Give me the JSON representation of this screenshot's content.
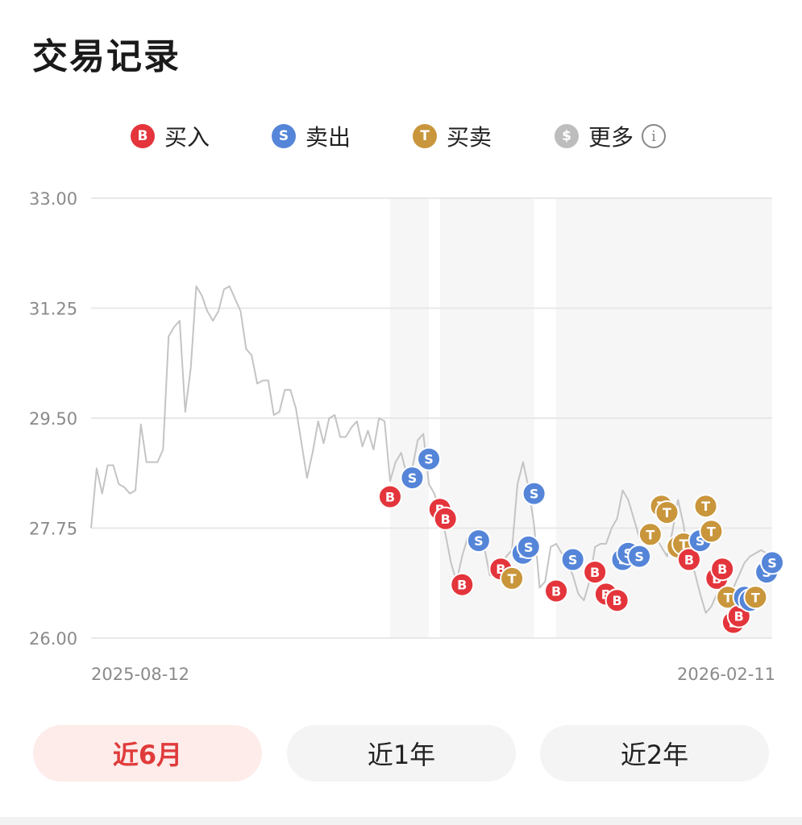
{
  "header": {
    "title": "交易记录"
  },
  "legend": [
    {
      "id": "buy",
      "glyph": "B",
      "label": "买入",
      "color": "#e3353b"
    },
    {
      "id": "sell",
      "glyph": "S",
      "label": "卖出",
      "color": "#5585d8"
    },
    {
      "id": "trade",
      "glyph": "T",
      "label": "买卖",
      "color": "#c9963c"
    },
    {
      "id": "more",
      "glyph": "$",
      "label": "更多",
      "color": "#bdbdbd"
    }
  ],
  "chart_data": {
    "type": "line",
    "y_ticks": [
      "33.00",
      "31.25",
      "29.50",
      "27.75",
      "26.00"
    ],
    "ylim": [
      26.0,
      33.0
    ],
    "x_start_label": "2025-08-12",
    "x_end_label": "2026-02-11",
    "grid": true,
    "line_color": "#c4c4c4",
    "x": [
      0,
      1,
      2,
      3,
      4,
      5,
      6,
      7,
      8,
      9,
      10,
      11,
      12,
      13,
      14,
      15,
      16,
      17,
      18,
      19,
      20,
      21,
      22,
      23,
      24,
      25,
      26,
      27,
      28,
      29,
      30,
      31,
      32,
      33,
      34,
      35,
      36,
      37,
      38,
      39,
      40,
      41,
      42,
      43,
      44,
      45,
      46,
      47,
      48,
      49,
      50,
      51,
      52,
      53,
      54,
      55,
      56,
      57,
      58,
      59,
      60,
      61,
      62,
      63,
      64,
      65,
      66,
      67,
      68,
      69,
      70,
      71,
      72,
      73,
      74,
      75,
      76,
      77,
      78,
      79,
      80,
      81,
      82,
      83,
      84,
      85,
      86,
      87,
      88,
      89,
      90,
      91,
      92,
      93,
      94,
      95,
      96,
      97,
      98,
      99,
      100,
      101,
      102,
      103,
      104,
      105,
      106,
      107,
      108,
      109,
      110,
      111,
      112,
      113,
      114,
      115,
      116,
      117,
      118,
      119,
      120,
      121,
      122,
      123
    ],
    "values": [
      27.75,
      28.7,
      28.3,
      28.75,
      28.75,
      28.45,
      28.4,
      28.3,
      28.35,
      29.4,
      28.8,
      28.8,
      28.8,
      29.0,
      30.8,
      30.95,
      31.05,
      29.6,
      30.3,
      31.6,
      31.45,
      31.2,
      31.05,
      31.2,
      31.55,
      31.6,
      31.4,
      31.2,
      30.6,
      30.5,
      30.05,
      30.1,
      30.1,
      29.55,
      29.6,
      29.95,
      29.95,
      29.65,
      29.1,
      28.55,
      28.95,
      29.45,
      29.1,
      29.5,
      29.55,
      29.2,
      29.2,
      29.35,
      29.45,
      29.05,
      29.3,
      29.0,
      29.5,
      29.45,
      28.5,
      28.8,
      28.95,
      28.6,
      28.7,
      29.15,
      29.25,
      28.45,
      28.3,
      28.0,
      27.65,
      27.2,
      26.9,
      27.3,
      27.6,
      27.4,
      27.5,
      27.45,
      27.0,
      27.1,
      27.1,
      27.3,
      27.4,
      28.45,
      28.8,
      28.4,
      27.8,
      26.8,
      26.9,
      27.45,
      27.5,
      27.35,
      27.2,
      27.0,
      26.7,
      26.6,
      26.9,
      27.45,
      27.5,
      27.5,
      27.75,
      27.9,
      28.35,
      28.2,
      27.9,
      27.6,
      27.55,
      27.55,
      27.6,
      27.45,
      27.3,
      27.7,
      28.2,
      27.8,
      27.2,
      27.05,
      26.7,
      26.4,
      26.5,
      26.7,
      26.55,
      26.7,
      26.8,
      27.0,
      27.2,
      27.3,
      27.35,
      27.4,
      27.35,
      27.3
    ],
    "shaded_ranges": [
      [
        54,
        61
      ],
      [
        63,
        80
      ],
      [
        84,
        123
      ]
    ],
    "markers": [
      {
        "type": "B",
        "x": 54,
        "y": 28.25
      },
      {
        "type": "S",
        "x": 58,
        "y": 28.55
      },
      {
        "type": "S",
        "x": 61,
        "y": 28.85
      },
      {
        "type": "B",
        "x": 63,
        "y": 28.05
      },
      {
        "type": "B",
        "x": 64,
        "y": 27.9
      },
      {
        "type": "B",
        "x": 67,
        "y": 26.85
      },
      {
        "type": "S",
        "x": 70,
        "y": 27.55
      },
      {
        "type": "B",
        "x": 74,
        "y": 27.1
      },
      {
        "type": "T",
        "x": 76,
        "y": 26.95
      },
      {
        "type": "S",
        "x": 78,
        "y": 27.35
      },
      {
        "type": "S",
        "x": 79,
        "y": 27.45
      },
      {
        "type": "S",
        "x": 80,
        "y": 28.3
      },
      {
        "type": "B",
        "x": 84,
        "y": 26.75
      },
      {
        "type": "S",
        "x": 87,
        "y": 27.25
      },
      {
        "type": "B",
        "x": 91,
        "y": 27.05
      },
      {
        "type": "B",
        "x": 93,
        "y": 26.7
      },
      {
        "type": "B",
        "x": 95,
        "y": 26.6
      },
      {
        "type": "S",
        "x": 96,
        "y": 27.25
      },
      {
        "type": "S",
        "x": 97,
        "y": 27.35
      },
      {
        "type": "S",
        "x": 99,
        "y": 27.3
      },
      {
        "type": "T",
        "x": 101,
        "y": 27.65
      },
      {
        "type": "T",
        "x": 103,
        "y": 28.1
      },
      {
        "type": "T",
        "x": 104,
        "y": 28.0
      },
      {
        "type": "T",
        "x": 106,
        "y": 27.45
      },
      {
        "type": "T",
        "x": 107,
        "y": 27.5
      },
      {
        "type": "B",
        "x": 108,
        "y": 27.25
      },
      {
        "type": "S",
        "x": 110,
        "y": 27.55
      },
      {
        "type": "T",
        "x": 111,
        "y": 28.1
      },
      {
        "type": "T",
        "x": 112,
        "y": 27.7
      },
      {
        "type": "B",
        "x": 113,
        "y": 26.95
      },
      {
        "type": "B",
        "x": 114,
        "y": 27.1
      },
      {
        "type": "T",
        "x": 115,
        "y": 26.65
      },
      {
        "type": "B",
        "x": 116,
        "y": 26.25
      },
      {
        "type": "B",
        "x": 117,
        "y": 26.35
      },
      {
        "type": "S",
        "x": 118,
        "y": 26.65
      },
      {
        "type": "S",
        "x": 119,
        "y": 26.6
      },
      {
        "type": "T",
        "x": 120,
        "y": 26.65
      },
      {
        "type": "S",
        "x": 122,
        "y": 27.05
      },
      {
        "type": "S",
        "x": 123,
        "y": 27.2
      }
    ],
    "marker_colors": {
      "B": "#e3353b",
      "S": "#5585d8",
      "T": "#c9963c"
    }
  },
  "range_buttons": [
    {
      "label": "近6月",
      "active": true
    },
    {
      "label": "近1年",
      "active": false
    },
    {
      "label": "近2年",
      "active": false
    }
  ]
}
